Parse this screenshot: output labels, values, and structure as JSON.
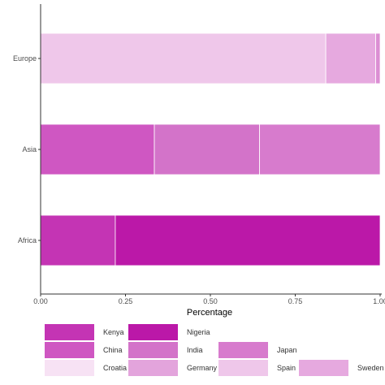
{
  "chart_data": {
    "type": "bar",
    "orientation": "horizontal",
    "stacked": true,
    "xlabel": "Percentage",
    "ylabel": "",
    "xlim": [
      0,
      1
    ],
    "x_ticks": [
      "0.00",
      "0.25",
      "0.50",
      "0.75",
      "1.00"
    ],
    "grid": false,
    "legend_position": "bottom",
    "categories": [
      "Europe",
      "Asia",
      "Africa"
    ],
    "series": [
      {
        "name": "Kenya",
        "color": "#c434b4",
        "values": [
          0,
          0,
          0.22
        ]
      },
      {
        "name": "Nigeria",
        "color": "#bb18a8",
        "values": [
          0,
          0,
          0.78
        ]
      },
      {
        "name": "China",
        "color": "#cf57c2",
        "values": [
          0,
          0.335,
          0
        ]
      },
      {
        "name": "India",
        "color": "#d373c9",
        "values": [
          0,
          0.31,
          0
        ]
      },
      {
        "name": "Japan",
        "color": "#d77bcd",
        "values": [
          0,
          0.355,
          0
        ]
      },
      {
        "name": "Croatia",
        "color": "#f7e2f4",
        "values": [
          0,
          0,
          0
        ]
      },
      {
        "name": "Germany",
        "color": "#e3a4dc",
        "values": [
          0,
          0,
          0
        ]
      },
      {
        "name": "Spain",
        "color": "#efc7ea",
        "values": [
          0.84,
          0,
          0
        ]
      },
      {
        "name": "Sweden",
        "color": "#e6a9df",
        "values": [
          0.147,
          0,
          0
        ]
      },
      {
        "name": "",
        "color": "#db8ed3",
        "values": [
          0.013,
          0,
          0
        ]
      }
    ],
    "legend": [
      {
        "name": "Kenya",
        "color": "#c434b4"
      },
      {
        "name": "Nigeria",
        "color": "#bb18a8"
      },
      {
        "name": "China",
        "color": "#cf57c2"
      },
      {
        "name": "India",
        "color": "#d373c9"
      },
      {
        "name": "Japan",
        "color": "#d77bcd"
      },
      {
        "name": "Croatia",
        "color": "#f7e2f4"
      },
      {
        "name": "Germany",
        "color": "#e3a4dc"
      },
      {
        "name": "Spain",
        "color": "#efc7ea"
      },
      {
        "name": "Sweden",
        "color": "#e6a9df"
      }
    ]
  }
}
